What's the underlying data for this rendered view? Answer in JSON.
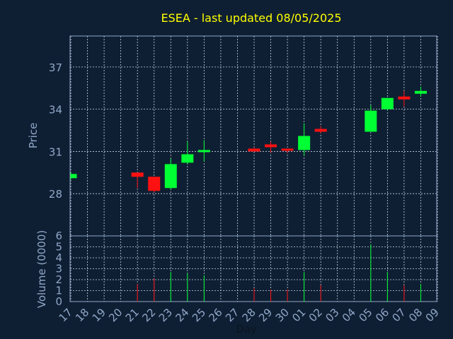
{
  "chart_data": {
    "type": "candlestick",
    "title": "ESEA - last updated 08/05/2025",
    "xlabel": "Day",
    "price_panel": {
      "ylabel": "Price",
      "yticks": [
        28,
        31,
        34,
        37
      ],
      "ylim": [
        25,
        39.2
      ]
    },
    "volume_panel": {
      "ylabel": "Volume (0000)",
      "yticks": [
        0,
        1,
        2,
        3,
        4,
        5,
        6
      ],
      "ylim": [
        0,
        6
      ]
    },
    "x_tick_labels": [
      "17",
      "18",
      "19",
      "20",
      "21",
      "22",
      "23",
      "24",
      "25",
      "26",
      "27",
      "28",
      "29",
      "30",
      "01",
      "02",
      "03",
      "04",
      "05",
      "06",
      "07",
      "08",
      "09"
    ],
    "colors": {
      "up": "#00ff33",
      "down": "#ff1111",
      "background": "#0f1f33",
      "title": "#ffff00",
      "axis": "#8fa7c8"
    },
    "candles": [
      {
        "day": "17",
        "open": 29.1,
        "high": 29.5,
        "low": 29.0,
        "close": 29.4,
        "volume": 0
      },
      {
        "day": "21",
        "open": 29.5,
        "high": 29.5,
        "low": 28.4,
        "close": 29.2,
        "volume": 1.6
      },
      {
        "day": "22",
        "open": 29.2,
        "high": 29.2,
        "low": 28.1,
        "close": 28.2,
        "volume": 2.1
      },
      {
        "day": "23",
        "open": 28.4,
        "high": 30.5,
        "low": 28.3,
        "close": 30.1,
        "volume": 2.7
      },
      {
        "day": "24",
        "open": 30.2,
        "high": 31.7,
        "low": 30.1,
        "close": 30.8,
        "volume": 2.6
      },
      {
        "day": "25",
        "open": 31.0,
        "high": 31.8,
        "low": 30.3,
        "close": 31.1,
        "volume": 2.4
      },
      {
        "day": "28",
        "open": 31.2,
        "high": 31.3,
        "low": 31.0,
        "close": 31.0,
        "volume": 1.2
      },
      {
        "day": "29",
        "open": 31.5,
        "high": 31.7,
        "low": 30.9,
        "close": 31.3,
        "volume": 1.1
      },
      {
        "day": "30",
        "open": 31.2,
        "high": 31.2,
        "low": 30.9,
        "close": 31.1,
        "volume": 1.1
      },
      {
        "day": "01",
        "open": 31.1,
        "high": 33.0,
        "low": 30.7,
        "close": 32.1,
        "volume": 2.7
      },
      {
        "day": "02",
        "open": 32.6,
        "high": 32.8,
        "low": 32.3,
        "close": 32.4,
        "volume": 1.5
      },
      {
        "day": "05",
        "open": 32.4,
        "high": 34.3,
        "low": 32.4,
        "close": 33.9,
        "volume": 5.2
      },
      {
        "day": "06",
        "open": 34.0,
        "high": 34.8,
        "low": 33.9,
        "close": 34.8,
        "volume": 2.7
      },
      {
        "day": "07",
        "open": 34.9,
        "high": 35.3,
        "low": 34.2,
        "close": 34.7,
        "volume": 1.5
      },
      {
        "day": "08",
        "open": 35.1,
        "high": 35.6,
        "low": 34.9,
        "close": 35.3,
        "volume": 1.6
      }
    ]
  }
}
